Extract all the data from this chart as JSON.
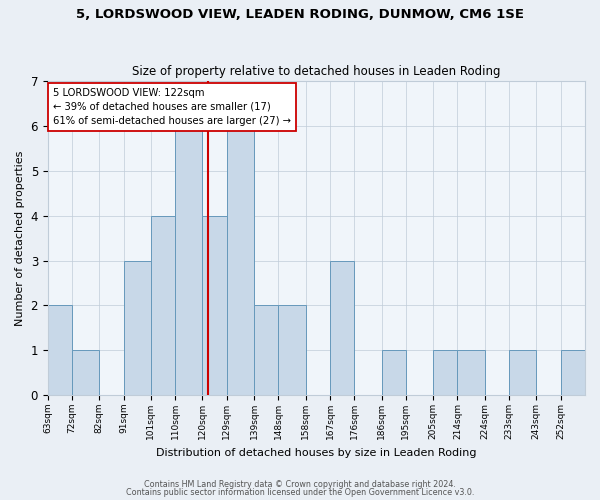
{
  "title1": "5, LORDSWOOD VIEW, LEADEN RODING, DUNMOW, CM6 1SE",
  "title2": "Size of property relative to detached houses in Leaden Roding",
  "xlabel": "Distribution of detached houses by size in Leaden Roding",
  "ylabel": "Number of detached properties",
  "bin_labels": [
    "63sqm",
    "72sqm",
    "82sqm",
    "91sqm",
    "101sqm",
    "110sqm",
    "120sqm",
    "129sqm",
    "139sqm",
    "148sqm",
    "158sqm",
    "167sqm",
    "176sqm",
    "186sqm",
    "195sqm",
    "205sqm",
    "214sqm",
    "224sqm",
    "233sqm",
    "243sqm",
    "252sqm"
  ],
  "bin_edges": [
    63,
    72,
    82,
    91,
    101,
    110,
    120,
    129,
    139,
    148,
    158,
    167,
    176,
    186,
    195,
    205,
    214,
    224,
    233,
    243,
    252
  ],
  "counts": [
    2,
    1,
    0,
    3,
    4,
    6,
    4,
    6,
    2,
    2,
    0,
    3,
    0,
    1,
    0,
    1,
    1,
    0,
    1,
    0,
    1
  ],
  "bar_color": "#c8d8e8",
  "bar_edge_color": "#6699bb",
  "property_value": 122,
  "vline_color": "#cc0000",
  "annotation_line1": "5 LORDSWOOD VIEW: 122sqm",
  "annotation_line2": "← 39% of detached houses are smaller (17)",
  "annotation_line3": "61% of semi-detached houses are larger (27) →",
  "annotation_box_color": "#ffffff",
  "annotation_box_edge_color": "#cc0000",
  "ylim": [
    0,
    7
  ],
  "footer1": "Contains HM Land Registry data © Crown copyright and database right 2024.",
  "footer2": "Contains public sector information licensed under the Open Government Licence v3.0.",
  "background_color": "#eaeff5",
  "plot_bg_color": "#f0f5fa",
  "grid_color": "#c0ccd8"
}
